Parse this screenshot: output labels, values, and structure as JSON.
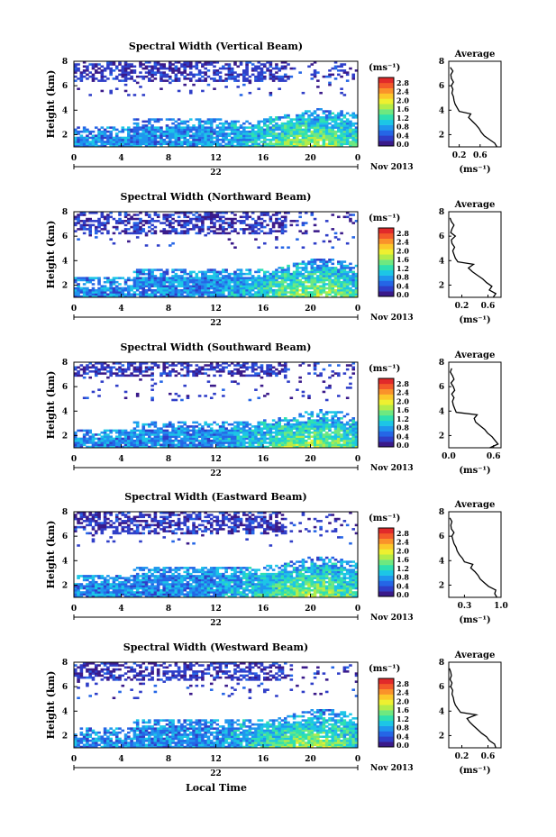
{
  "figure": {
    "xlabel": "Local Time",
    "date_label": "22",
    "month_label": "Nov 2013"
  },
  "colorbar": {
    "unit_label": "(ms⁻¹)",
    "ticks": [
      "2.8",
      "2.4",
      "2.0",
      "1.6",
      "1.2",
      "0.8",
      "0.4",
      "0.0"
    ],
    "colors": [
      "#3a1a8a",
      "#2f3ec8",
      "#2566e6",
      "#1f96ee",
      "#1cc6e6",
      "#2ee0b0",
      "#6ee880",
      "#b4ec48",
      "#eef030",
      "#fcc82a",
      "#fa922a",
      "#f35a2a",
      "#e12a2a"
    ]
  },
  "chart_data": [
    {
      "type": "heatmap",
      "title": "Spectral Width (Vertical Beam)",
      "ylabel": "Height (km)",
      "xlim": [
        0,
        24
      ],
      "ylim": [
        1,
        8
      ],
      "xticks": [
        "0",
        "4",
        "8",
        "12",
        "16",
        "20",
        "0"
      ],
      "yticks": [
        "2",
        "4",
        "6",
        "8"
      ],
      "color_range": [
        0,
        2.8
      ],
      "profile": {
        "title": "Average",
        "xlabel": "(ms⁻¹)",
        "xlim": [
          0,
          1.0
        ],
        "xticks": [
          "0.2",
          "0.6"
        ],
        "xtick_values": [
          0.2,
          0.6
        ],
        "heights": [
          1.0,
          1.3,
          1.6,
          1.9,
          2.2,
          2.5,
          2.8,
          3.1,
          3.4,
          3.7,
          3.9,
          4.2,
          4.5,
          4.8,
          5.1,
          5.4,
          5.7,
          6.0,
          6.3,
          6.6,
          6.9,
          7.2,
          7.5
        ],
        "values": [
          0.92,
          0.88,
          0.78,
          0.68,
          0.62,
          0.58,
          0.52,
          0.45,
          0.38,
          0.42,
          0.2,
          0.16,
          0.12,
          0.1,
          0.09,
          0.06,
          0.08,
          0.05,
          0.09,
          0.05,
          0.04,
          0.08,
          0.03
        ]
      }
    },
    {
      "type": "heatmap",
      "title": "Spectral Width (Northward Beam)",
      "ylabel": "Height (km)",
      "xlim": [
        0,
        24
      ],
      "ylim": [
        1,
        8
      ],
      "xticks": [
        "0",
        "4",
        "8",
        "12",
        "16",
        "20",
        "0"
      ],
      "yticks": [
        "2",
        "4",
        "6",
        "8"
      ],
      "color_range": [
        0,
        2.8
      ],
      "profile": {
        "title": "Average",
        "xlabel": "(ms⁻¹)",
        "xlim": [
          0,
          0.8
        ],
        "xticks": [
          "0.2",
          "0.6"
        ],
        "xtick_values": [
          0.2,
          0.6
        ],
        "heights": [
          1.0,
          1.3,
          1.6,
          1.9,
          2.2,
          2.5,
          2.8,
          3.1,
          3.4,
          3.7,
          3.9,
          4.2,
          4.5,
          4.8,
          5.1,
          5.4,
          5.7,
          6.0,
          6.3,
          6.6,
          6.9,
          7.2,
          7.5
        ],
        "values": [
          0.68,
          0.72,
          0.62,
          0.66,
          0.58,
          0.52,
          0.44,
          0.36,
          0.3,
          0.38,
          0.14,
          0.1,
          0.08,
          0.06,
          0.09,
          0.05,
          0.04,
          0.1,
          0.03,
          0.05,
          0.08,
          0.04,
          0.02
        ]
      }
    },
    {
      "type": "heatmap",
      "title": "Spectral Width (Southward Beam)",
      "ylabel": "Height (km)",
      "xlim": [
        0,
        24
      ],
      "ylim": [
        1,
        8
      ],
      "xticks": [
        "0",
        "4",
        "8",
        "12",
        "16",
        "20",
        "0"
      ],
      "yticks": [
        "2",
        "4",
        "6",
        "8"
      ],
      "color_range": [
        0,
        2.8
      ],
      "profile": {
        "title": "Average",
        "xlabel": "(ms⁻¹)",
        "xlim": [
          0,
          0.7
        ],
        "xticks": [
          "0.0",
          "0.6"
        ],
        "xtick_values": [
          0.0,
          0.6
        ],
        "heights": [
          1.0,
          1.3,
          1.6,
          1.9,
          2.2,
          2.5,
          2.8,
          3.1,
          3.4,
          3.7,
          3.9,
          4.2,
          4.5,
          4.8,
          5.1,
          5.4,
          5.7,
          6.0,
          6.3,
          6.6,
          6.9,
          7.2,
          7.5
        ],
        "values": [
          0.55,
          0.66,
          0.62,
          0.58,
          0.52,
          0.48,
          0.42,
          0.36,
          0.34,
          0.38,
          0.1,
          0.08,
          0.06,
          0.05,
          0.07,
          0.04,
          0.08,
          0.06,
          0.03,
          0.07,
          0.05,
          0.02,
          0.04
        ]
      }
    },
    {
      "type": "heatmap",
      "title": "Spectral Width (Eastward Beam)",
      "ylabel": "Height (km)",
      "xlim": [
        0,
        24
      ],
      "ylim": [
        1,
        8
      ],
      "xticks": [
        "0",
        "4",
        "8",
        "12",
        "16",
        "20",
        "0"
      ],
      "yticks": [
        "2",
        "4",
        "6",
        "8"
      ],
      "color_range": [
        0,
        2.8
      ],
      "profile": {
        "title": "Average",
        "xlabel": "(ms⁻¹)",
        "xlim": [
          0,
          1.0
        ],
        "xticks": [
          "0.3",
          "1.0"
        ],
        "xtick_values": [
          0.3,
          1.0
        ],
        "heights": [
          1.0,
          1.3,
          1.6,
          1.9,
          2.2,
          2.5,
          2.8,
          3.1,
          3.4,
          3.7,
          3.9,
          4.2,
          4.5,
          4.8,
          5.1,
          5.4,
          5.7,
          6.0,
          6.3,
          6.6,
          6.9,
          7.2,
          7.5
        ],
        "values": [
          0.92,
          0.88,
          0.9,
          0.76,
          0.68,
          0.6,
          0.56,
          0.5,
          0.42,
          0.46,
          0.3,
          0.26,
          0.2,
          0.16,
          0.14,
          0.1,
          0.08,
          0.06,
          0.1,
          0.05,
          0.04,
          0.06,
          0.02
        ]
      }
    },
    {
      "type": "heatmap",
      "title": "Spectral Width (Westward Beam)",
      "ylabel": "Height (km)",
      "xlim": [
        0,
        24
      ],
      "ylim": [
        1,
        8
      ],
      "xticks": [
        "0",
        "4",
        "8",
        "12",
        "16",
        "20",
        "0"
      ],
      "yticks": [
        "2",
        "4",
        "6",
        "8"
      ],
      "color_range": [
        0,
        2.8
      ],
      "profile": {
        "title": "Average",
        "xlabel": "(ms⁻¹)",
        "xlim": [
          0,
          0.8
        ],
        "xticks": [
          "0.2",
          "0.6"
        ],
        "xtick_values": [
          0.2,
          0.6
        ],
        "heights": [
          1.0,
          1.3,
          1.6,
          1.9,
          2.2,
          2.5,
          2.8,
          3.1,
          3.4,
          3.7,
          3.9,
          4.2,
          4.5,
          4.8,
          5.1,
          5.4,
          5.7,
          6.0,
          6.3,
          6.6,
          6.9,
          7.2,
          7.5
        ],
        "values": [
          0.72,
          0.7,
          0.62,
          0.58,
          0.5,
          0.44,
          0.38,
          0.32,
          0.28,
          0.42,
          0.18,
          0.14,
          0.1,
          0.08,
          0.07,
          0.05,
          0.06,
          0.03,
          0.05,
          0.02,
          0.04,
          0.03,
          0.01
        ]
      }
    }
  ]
}
